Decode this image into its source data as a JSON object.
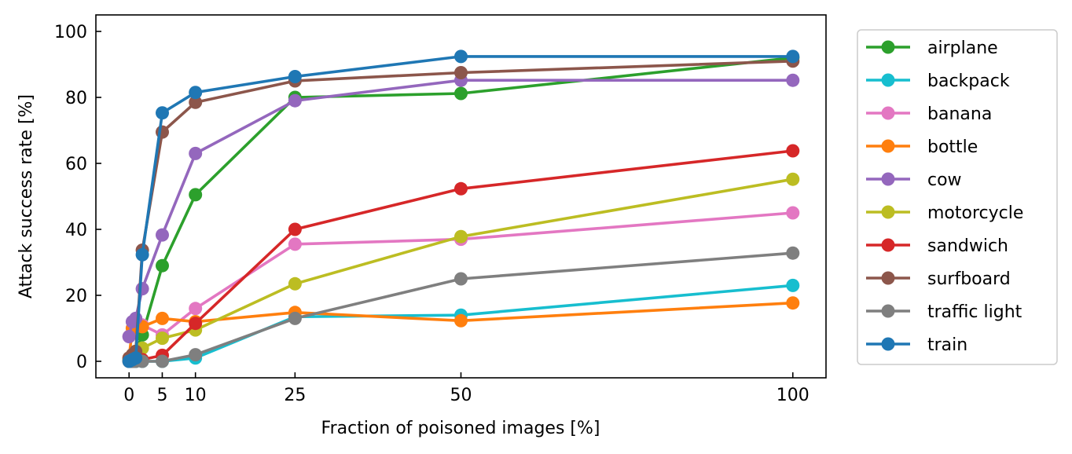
{
  "chart_data": {
    "type": "line",
    "xlabel": "Fraction of poisoned images [%]",
    "ylabel": "Attack success rate [%]",
    "xlim": [
      -5,
      105
    ],
    "ylim": [
      -5,
      105
    ],
    "xticks": [
      0,
      5,
      10,
      25,
      50,
      100
    ],
    "yticks": [
      0,
      20,
      40,
      60,
      80,
      100
    ],
    "grid": false,
    "legend_position": "outside-right",
    "x": [
      0,
      0.5,
      1,
      2,
      5,
      10,
      25,
      50,
      100
    ],
    "series": [
      {
        "name": "airplane",
        "color": "#2ca02c",
        "values": [
          0.5,
          1.0,
          3.0,
          8.0,
          29.0,
          50.5,
          80.0,
          81.2,
          92.0
        ]
      },
      {
        "name": "backpack",
        "color": "#17becf",
        "values": [
          0.0,
          0.0,
          0.0,
          0.0,
          0.0,
          1.0,
          13.5,
          14.0,
          23.0
        ]
      },
      {
        "name": "banana",
        "color": "#e377c2",
        "values": [
          7.5,
          10.0,
          10.5,
          11.0,
          8.0,
          16.0,
          35.5,
          37.0,
          45.0
        ]
      },
      {
        "name": "bottle",
        "color": "#ff7f0e",
        "values": [
          1.0,
          10.0,
          11.0,
          10.5,
          13.0,
          12.0,
          14.8,
          12.3,
          17.7
        ]
      },
      {
        "name": "cow",
        "color": "#9467bd",
        "values": [
          7.5,
          12.0,
          13.0,
          22.0,
          38.3,
          63.0,
          79.0,
          85.2,
          85.2
        ]
      },
      {
        "name": "motorcycle",
        "color": "#bcbd22",
        "values": [
          0.5,
          2.0,
          3.0,
          4.0,
          7.0,
          9.5,
          23.5,
          37.8,
          55.2
        ]
      },
      {
        "name": "sandwich",
        "color": "#d62728",
        "values": [
          0.0,
          0.0,
          0.3,
          0.5,
          1.8,
          11.5,
          40.0,
          52.3,
          63.8
        ]
      },
      {
        "name": "surfboard",
        "color": "#8c564b",
        "values": [
          1.0,
          2.0,
          3.0,
          33.7,
          69.5,
          78.5,
          85.0,
          87.5,
          91.0
        ]
      },
      {
        "name": "traffic light",
        "color": "#7f7f7f",
        "values": [
          0.0,
          0.0,
          0.0,
          0.0,
          0.0,
          2.0,
          13.0,
          25.0,
          32.8
        ]
      },
      {
        "name": "train",
        "color": "#1f77b4",
        "values": [
          0.0,
          0.5,
          1.0,
          32.3,
          75.3,
          81.5,
          86.3,
          92.4,
          92.4
        ]
      }
    ]
  }
}
